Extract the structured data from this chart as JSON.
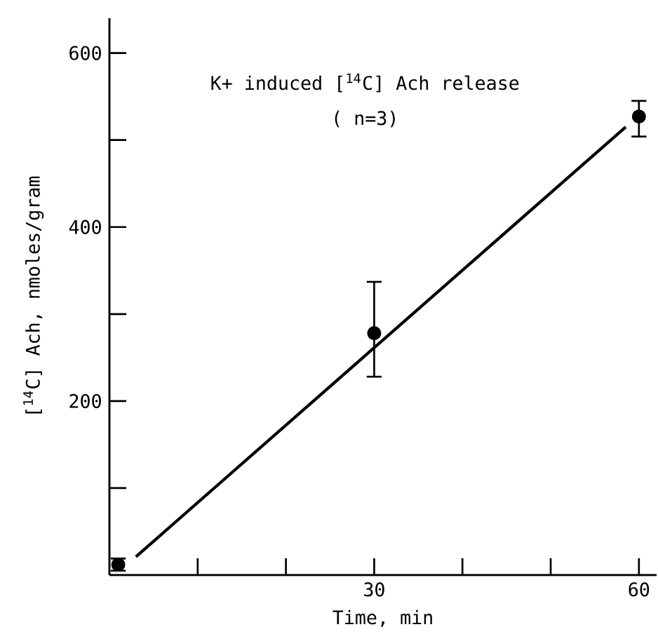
{
  "chart_data": {
    "type": "scatter",
    "title": "K+ induced [$^{14}$C] Ach release",
    "subtitle": "( n=3)",
    "xlabel": "Time,   min",
    "ylabel": "[$^{14}$C]  Ach,    nmoles/gram",
    "xlim": [
      0,
      62
    ],
    "ylim": [
      0,
      640
    ],
    "xticks": [
      {
        "value": 10,
        "label": null
      },
      {
        "value": 20,
        "label": null
      },
      30,
      {
        "value": 40,
        "label": null
      },
      {
        "value": 50,
        "label": null
      },
      60
    ],
    "yticks": [
      {
        "value": 100,
        "label": null
      },
      200,
      {
        "value": 300,
        "label": null
      },
      400,
      {
        "value": 500,
        "label": null
      },
      600
    ],
    "series": [
      {
        "color": "#000000",
        "marker": "circle",
        "x": [
          1,
          30,
          60
        ],
        "values": [
          12,
          278,
          527
        ],
        "errors": [
          [
            5,
            19
          ],
          [
            228,
            337
          ],
          [
            504,
            545
          ]
        ]
      },
      {
        "type": "line",
        "color": "#000000",
        "marker": "none",
        "line_style": "solid",
        "x": [
          3,
          58.5
        ],
        "values": [
          21,
          515
        ]
      }
    ]
  }
}
